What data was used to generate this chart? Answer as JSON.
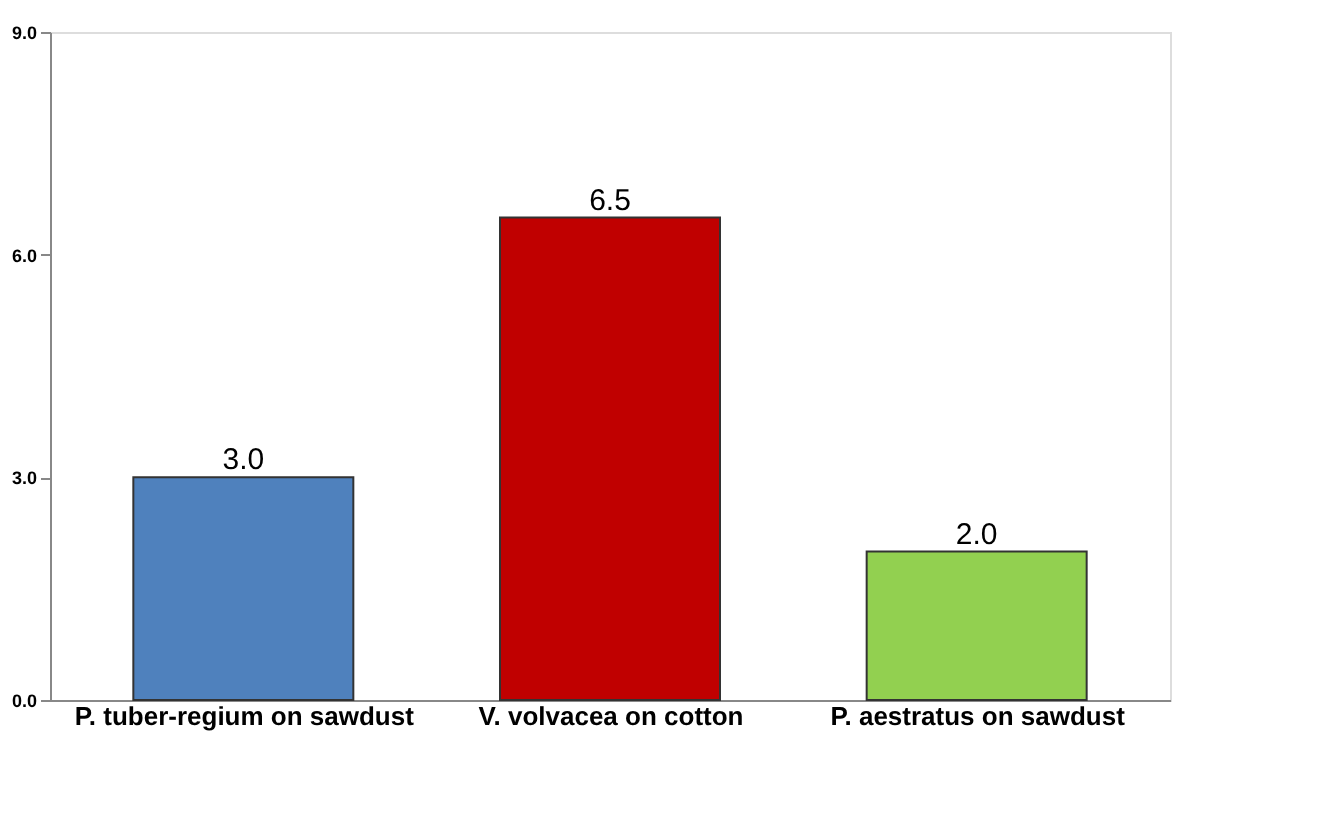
{
  "chart_data": {
    "type": "bar",
    "categories": [
      "P. tuber-regium on sawdust",
      "V. volvacea on cotton",
      "P. aestratus on sawdust"
    ],
    "values": [
      3.0,
      6.5,
      2.0
    ],
    "colors": [
      "#4f81bd",
      "#c00000",
      "#92d050"
    ],
    "value_labels": [
      "3.0",
      "6.5",
      "2.0"
    ],
    "ylim": [
      0,
      9
    ],
    "yticks": [
      {
        "value": 0,
        "label": "0.0"
      },
      {
        "value": 3,
        "label": "3.0"
      },
      {
        "value": 6,
        "label": "6.0"
      },
      {
        "value": 9,
        "label": "9.0"
      }
    ],
    "grid": false
  }
}
